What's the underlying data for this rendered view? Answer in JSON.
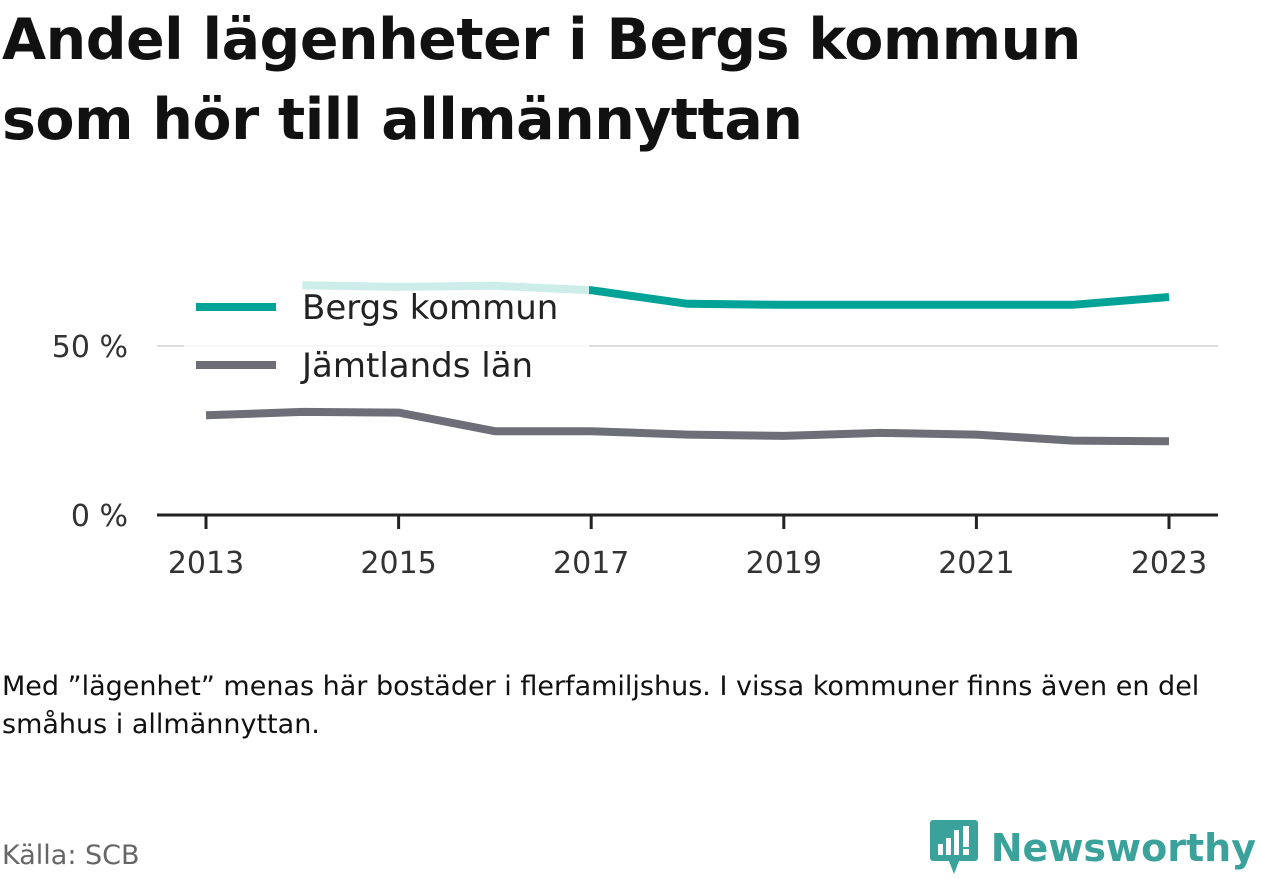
{
  "title_lines": [
    "Andel lägenheter i Bergs kommun",
    "som hör till allmännyttan"
  ],
  "note": "Med ”lägenhet” menas här bostäder i flerfamiljshus. I vissa kommuner finns även en del småhus i allmännyttan.",
  "source": "Källa: SCB",
  "brand": "Newsworthy",
  "colors": {
    "bergs": "#00a396",
    "jamtland": "#6e6e78",
    "brand": "#3aa19b"
  },
  "chart_data": {
    "type": "line",
    "x": [
      2013,
      2014,
      2015,
      2016,
      2017,
      2018,
      2019,
      2020,
      2021,
      2022,
      2023
    ],
    "ylim": [
      0,
      100
    ],
    "y_ticks": [
      {
        "value": 0,
        "label": "0 %"
      },
      {
        "value": 50,
        "label": "50 %"
      }
    ],
    "x_ticks": [
      {
        "value": 2013,
        "label": "2013"
      },
      {
        "value": 2015,
        "label": "2015"
      },
      {
        "value": 2017,
        "label": "2017"
      },
      {
        "value": 2019,
        "label": "2019"
      },
      {
        "value": 2021,
        "label": "2021"
      },
      {
        "value": 2023,
        "label": "2023"
      }
    ],
    "legend_position": "top-left",
    "grid": true,
    "series": [
      {
        "name": "Bergs kommun",
        "color": "#00a396",
        "values": [
          null,
          68.0,
          67.5,
          67.8,
          66.5,
          62.5,
          62.2,
          62.2,
          62.2,
          62.2,
          64.5
        ]
      },
      {
        "name": "Jämtlands län",
        "color": "#6e6e78",
        "values": [
          29.5,
          30.5,
          30.3,
          24.8,
          24.8,
          23.8,
          23.4,
          24.3,
          23.8,
          22.0,
          21.8
        ]
      }
    ]
  }
}
